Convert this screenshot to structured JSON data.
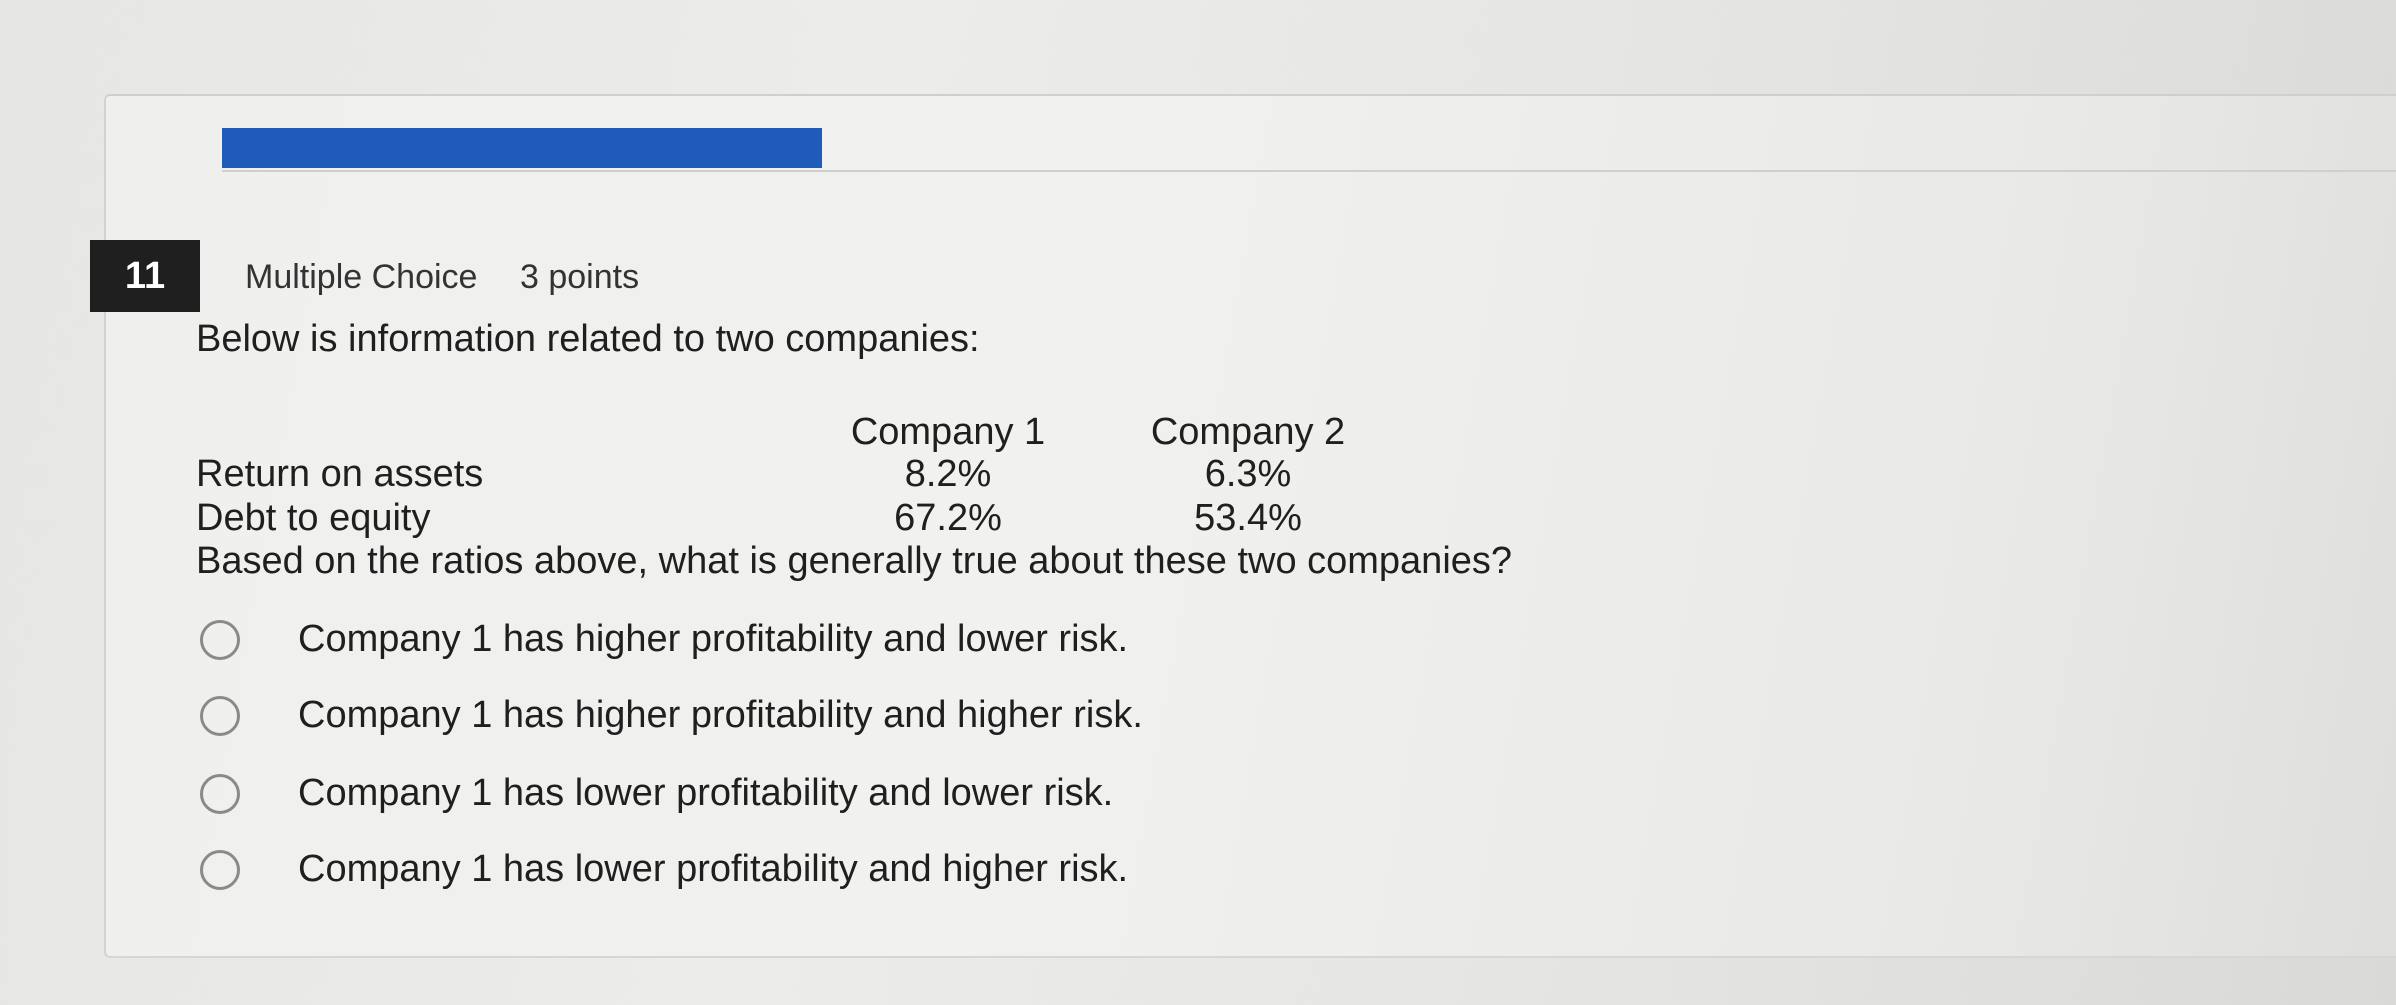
{
  "progress": {
    "fraction": 0.275,
    "color": "#1f5bb8"
  },
  "question": {
    "number": "11",
    "type": "Multiple Choice",
    "points": "3 points",
    "intro": "Below is information related to two companies:",
    "table": {
      "headers": [
        "Company 1",
        "Company 2"
      ],
      "rows": [
        {
          "label": "Return on assets",
          "values": [
            "8.2%",
            "6.3%"
          ]
        },
        {
          "label": "Debt to equity",
          "values": [
            "67.2%",
            "53.4%"
          ]
        }
      ]
    },
    "prompt": "Based on the ratios above, what is generally true about these two companies?",
    "options": [
      {
        "label": "Company 1 has higher profitability and lower risk."
      },
      {
        "label": "Company 1 has higher profitability and higher risk."
      },
      {
        "label": "Company 1 has lower profitability and lower risk."
      },
      {
        "label": "Company 1 has lower profitability and higher risk."
      }
    ]
  }
}
